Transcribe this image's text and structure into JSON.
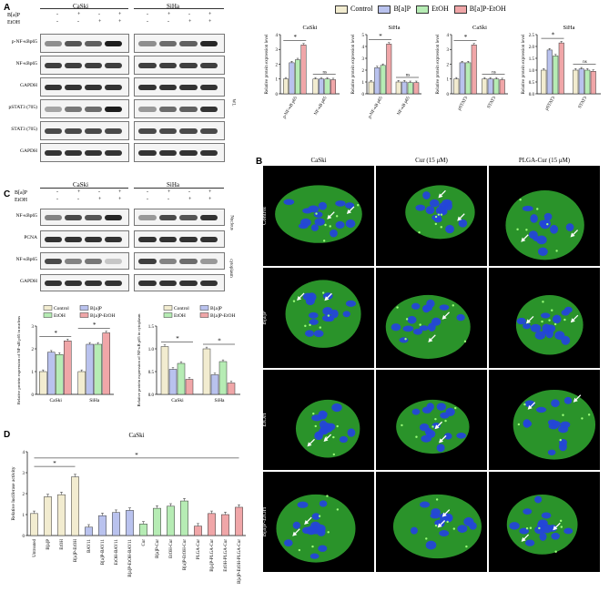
{
  "panelA": {
    "letter": "A",
    "group_left": "CaSki",
    "group_right": "SiHa",
    "row_labels": [
      "B[a]P",
      "EtOH"
    ],
    "signs_bap": [
      "-",
      "+",
      "-",
      "+"
    ],
    "signs_etoh": [
      "-",
      "-",
      "+",
      "+"
    ],
    "markers": [
      "p-NF-κBp65",
      "NF-κBp65",
      "GAPDH",
      "pSTAT3",
      "STAT3",
      "GAPDH"
    ],
    "marker_suffixes": [
      "",
      "",
      "",
      "(705)",
      "(705)",
      ""
    ],
    "side_label": "WL"
  },
  "legend": {
    "items": [
      "Control",
      "B[a]P",
      "EtOH",
      "B[a]P-EtOH"
    ],
    "colors": [
      "#f2ecd0",
      "#b9c2ee",
      "#b6ecb4",
      "#f0a6a8"
    ]
  },
  "panelA_charts": [
    {
      "title": "CaSki",
      "ylabel": "Relative protein expression level",
      "categories": [
        "p-NF-κB p65",
        "NF-κB p65"
      ],
      "ylim": [
        0,
        4
      ],
      "ticks": [
        "0",
        "1",
        "2",
        "3",
        "4"
      ],
      "values": [
        [
          1.0,
          2.1,
          2.3,
          3.3
        ],
        [
          1.0,
          1.0,
          1.0,
          0.95
        ]
      ],
      "sig": [
        "*",
        "ns"
      ]
    },
    {
      "title": "SiHa",
      "ylabel": "Relative protein expression level",
      "categories": [
        "p-NF-κB p65",
        "NF-κB p65"
      ],
      "ylim": [
        0,
        5
      ],
      "ticks": [
        "0",
        "1",
        "2",
        "3",
        "4",
        "5"
      ],
      "values": [
        [
          1.0,
          2.2,
          2.4,
          4.2
        ],
        [
          1.0,
          1.0,
          0.95,
          0.95
        ]
      ],
      "sig": [
        "*",
        "ns"
      ]
    },
    {
      "title": "CaSki",
      "ylabel": "Relative protein expression level",
      "categories": [
        "pSTAT3",
        "STAT3"
      ],
      "ylim": [
        0,
        4
      ],
      "ticks": [
        "0",
        "1",
        "2",
        "3",
        "4"
      ],
      "values": [
        [
          1.0,
          2.1,
          2.1,
          3.3
        ],
        [
          1.0,
          1.0,
          1.0,
          0.95
        ]
      ],
      "sig": [
        "*",
        "ns"
      ]
    },
    {
      "title": "SiHa",
      "ylabel": "Relative protein expression level",
      "categories": [
        "pSTAT3",
        "STAT3"
      ],
      "ylim": [
        0,
        2.5
      ],
      "ticks": [
        "0.0",
        "0.5",
        "1.0",
        "1.5",
        "2.0",
        "2.5"
      ],
      "values": [
        [
          1.0,
          1.85,
          1.6,
          2.15
        ],
        [
          1.0,
          1.05,
          1.0,
          0.95
        ]
      ],
      "sig": [
        "*",
        "ns"
      ]
    }
  ],
  "panelB": {
    "letter": "B",
    "columns": [
      "CaSki",
      "Cur (15 μM)",
      "PLGA-Cur    (15 μM)"
    ],
    "rows": [
      "Control",
      "B[a]P",
      "EtOH",
      "B[a]P-EtOH"
    ]
  },
  "panelC": {
    "letter": "C",
    "group_left": "CaSki",
    "group_right": "SiHa",
    "row_labels": [
      "B[a]P",
      "EtOH"
    ],
    "signs_bap": [
      "-",
      "+",
      "-",
      "+"
    ],
    "signs_etoh": [
      "-",
      "-",
      "+",
      "+"
    ],
    "markers": [
      "NF-κBp65",
      "PCNA",
      "NF-κBp65",
      "GAPDH"
    ],
    "side_labels": [
      "Nucleus",
      "cytoplasm"
    ]
  },
  "panelC_charts": [
    {
      "ylabel": "Relative protein expression of NF-κB p65 in nucleus",
      "legend": [
        "Control",
        "B[a]P",
        "EtOH",
        "B[a]P-EtOH"
      ],
      "categories": [
        "CaSki",
        "SiHa"
      ],
      "ylim": [
        0,
        3
      ],
      "ticks": [
        "0",
        "1",
        "2",
        "3"
      ],
      "values": [
        [
          1.0,
          1.85,
          1.75,
          2.35
        ],
        [
          1.0,
          2.2,
          2.2,
          2.7
        ]
      ],
      "sig": [
        "*",
        "*"
      ]
    },
    {
      "ylabel": "Relative protein expression of NF-κB p65 in cytoplasm",
      "legend": [
        "Control",
        "B[a]P",
        "EtOH",
        "B[a]P-EtOH"
      ],
      "categories": [
        "CaSki",
        "SiHa"
      ],
      "ylim": [
        0,
        1.5
      ],
      "ticks": [
        "0.0",
        "0.5",
        "1.0",
        "1.5"
      ],
      "values": [
        [
          1.05,
          0.55,
          0.68,
          0.33
        ],
        [
          1.0,
          0.43,
          0.72,
          0.25
        ]
      ],
      "sig": [
        "*",
        "*"
      ]
    }
  ],
  "panelD": {
    "letter": "D",
    "title": "CaSki",
    "ylabel": "Relative luciferase activity",
    "ylim": [
      0,
      4
    ],
    "ticks": [
      "0",
      "1",
      "2",
      "3",
      "4"
    ],
    "categories": [
      "Untreated",
      "B[a]P",
      "EtOH",
      "B[a]P-EtOH",
      "BAY11",
      "B[a]P-BAY11",
      "EtOH-BAY11",
      "B[a]P-EtOH-BAY11",
      "Cur",
      "B[a]P-Cur",
      "EtOH-Cur",
      "B[a]P-EtOH-Cur",
      "PLGA-Cur",
      "B[a]P-PLGA-Cur",
      "EtOH-PLGA-Cur",
      "B[a]P-EtOH-PLGA-Cur"
    ],
    "values": [
      1.05,
      1.85,
      1.95,
      2.8,
      0.4,
      0.95,
      1.1,
      1.2,
      0.55,
      1.3,
      1.4,
      1.65,
      0.45,
      1.05,
      1.0,
      1.35
    ],
    "colors": [
      "#f2ecd0",
      "#f2ecd0",
      "#f2ecd0",
      "#f2ecd0",
      "#b9c2ee",
      "#b9c2ee",
      "#b9c2ee",
      "#b9c2ee",
      "#b6ecb4",
      "#b6ecb4",
      "#b6ecb4",
      "#b6ecb4",
      "#f0a6a8",
      "#f0a6a8",
      "#f0a6a8",
      "#f0a6a8"
    ],
    "sig": [
      "*",
      "*"
    ]
  }
}
